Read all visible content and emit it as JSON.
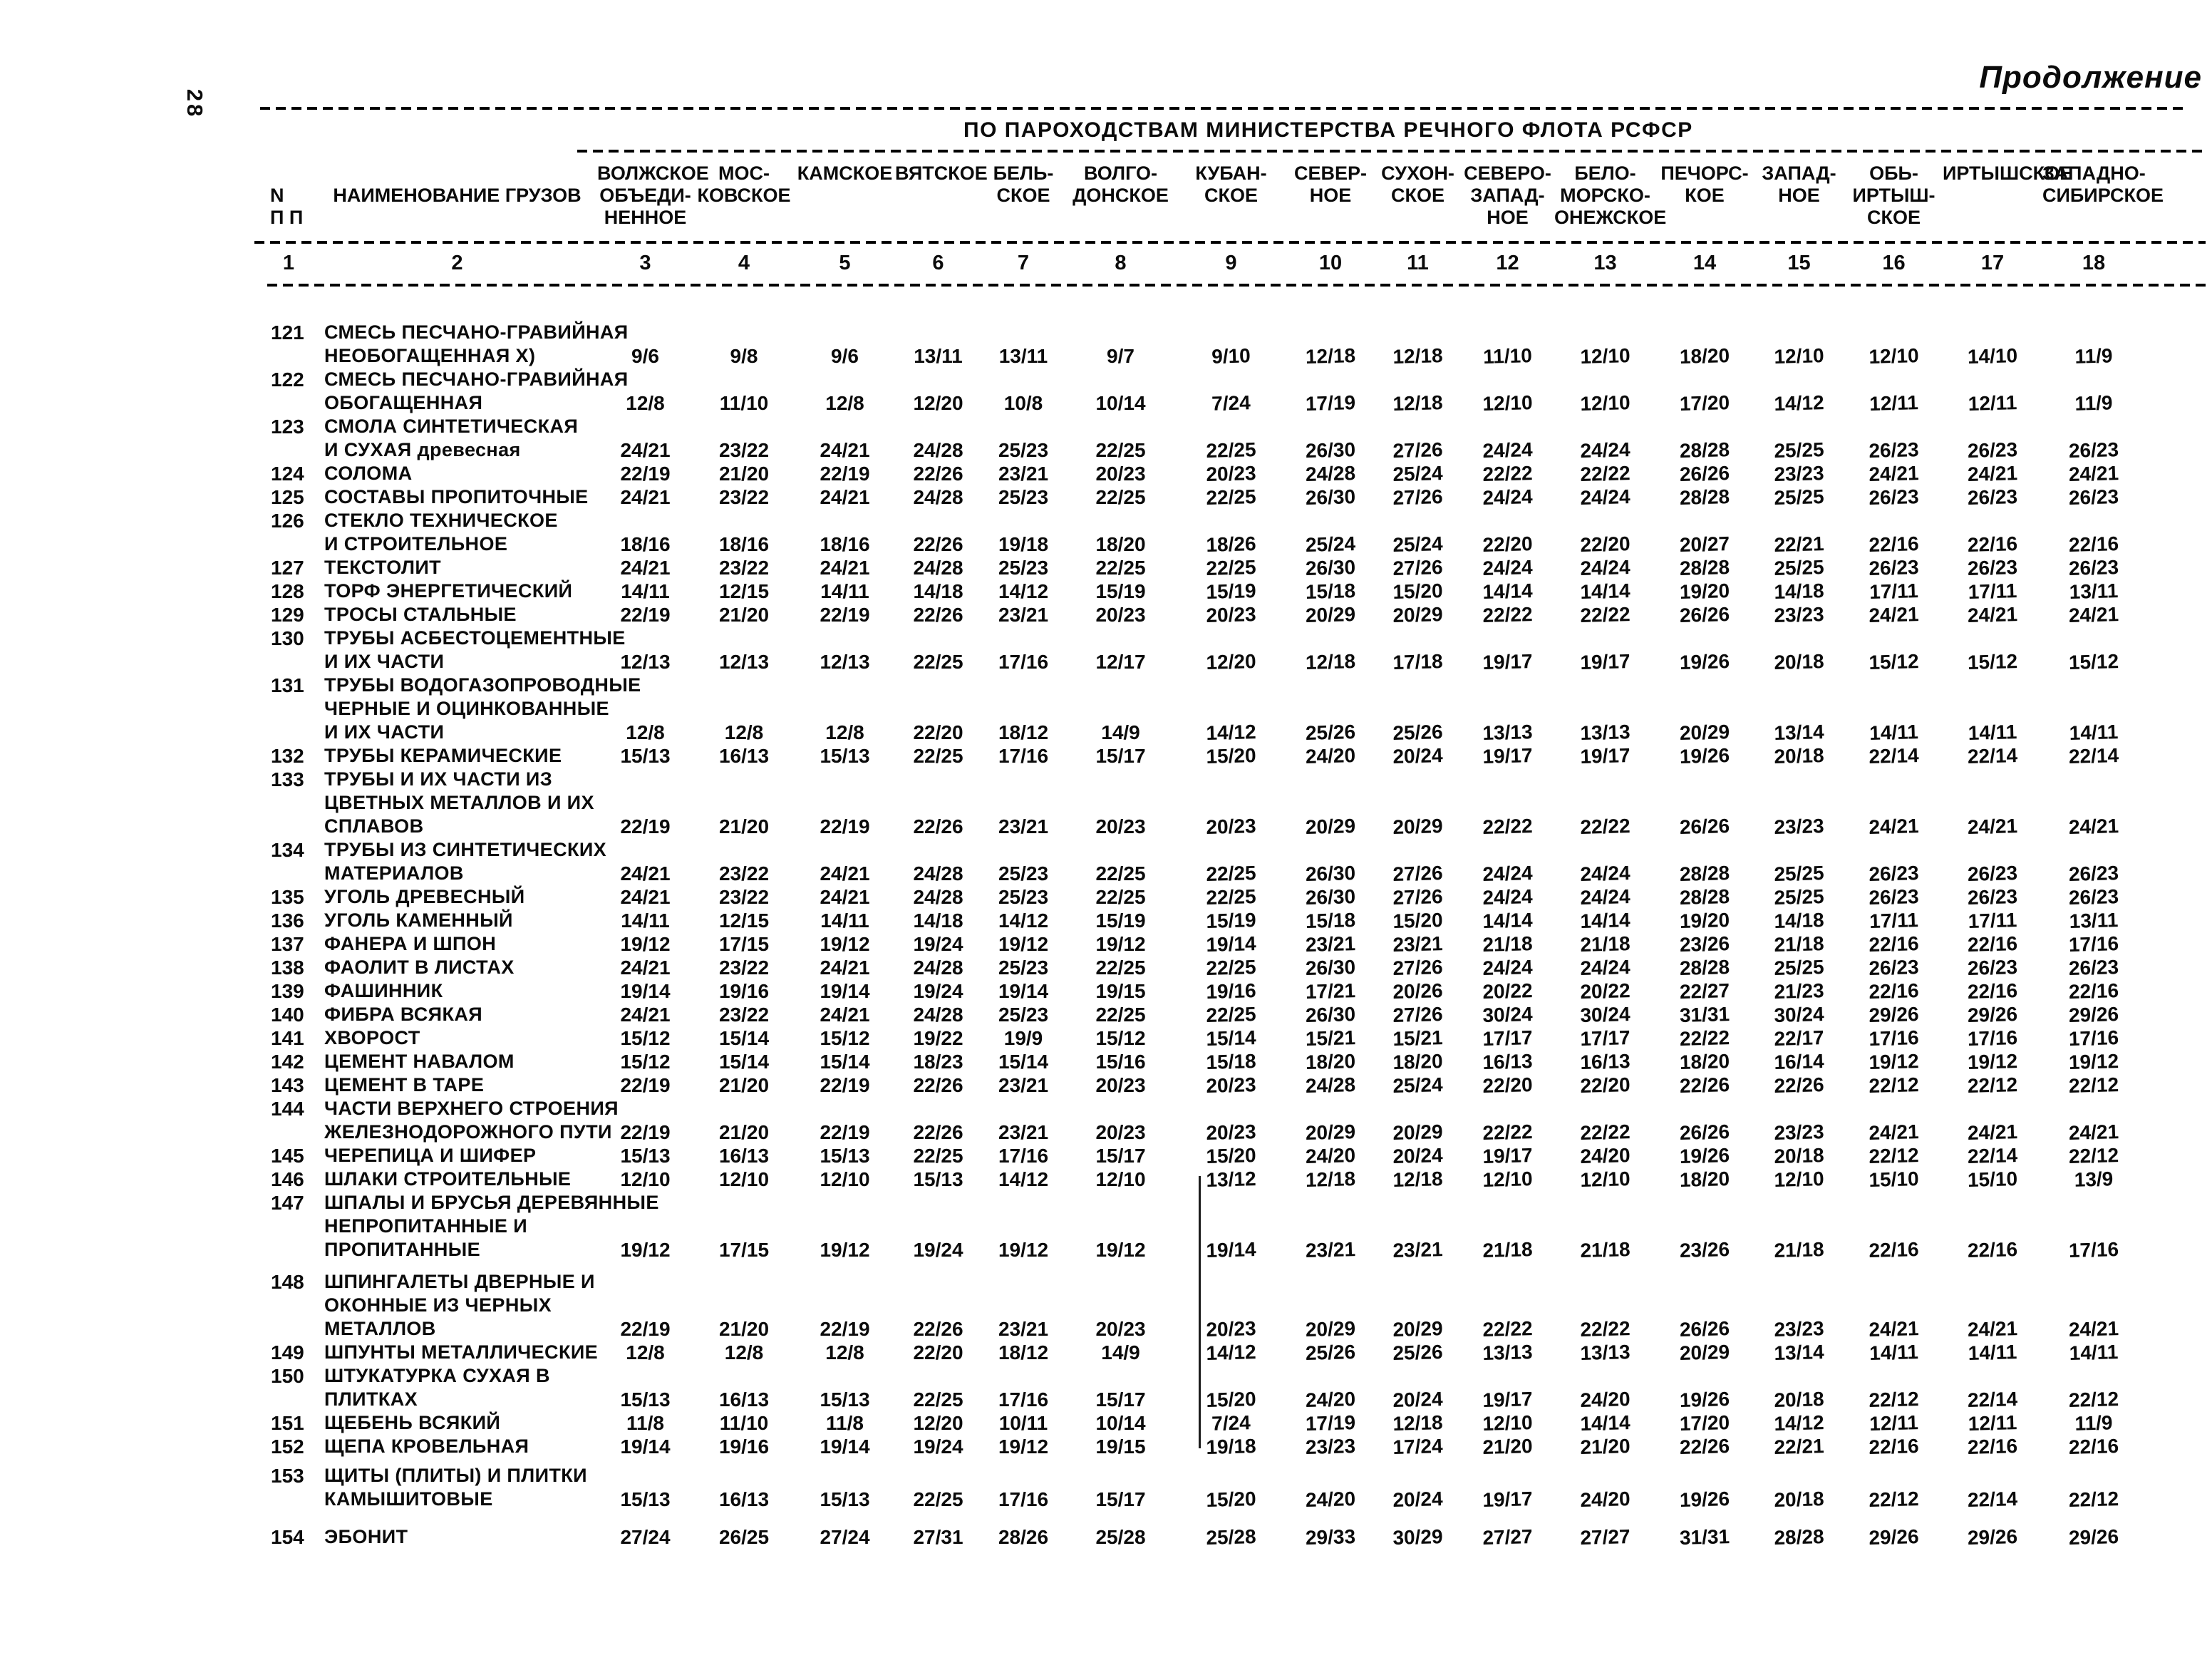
{
  "page": {
    "page_number": "28",
    "continuation_label": "Продолжение",
    "group_title": "ПО ПАРОХОДСТВАМ МИНИСТЕРСТВА РЕЧНОГО ФЛОТА РСФСР"
  },
  "table": {
    "row_header": {
      "num_label_line1": "N",
      "num_label_line2": "П П",
      "name_label": "НАИМЕНОВАНИЕ ГРУЗОВ"
    },
    "columns": [
      {
        "num": "3",
        "label_lines": [
          "ВОЛЖСКОЕ",
          "ОБЪЕДИ-",
          "НЕННОЕ"
        ]
      },
      {
        "num": "4",
        "label_lines": [
          "МОС-",
          "КОВСКОЕ"
        ]
      },
      {
        "num": "5",
        "label_lines": [
          "КАМСКОЕ"
        ]
      },
      {
        "num": "6",
        "label_lines": [
          "ВЯТСКОЕ"
        ]
      },
      {
        "num": "7",
        "label_lines": [
          "БЕЛЬ-",
          "СКОЕ"
        ]
      },
      {
        "num": "8",
        "label_lines": [
          "ВОЛГО-",
          "ДОНСКОЕ"
        ]
      },
      {
        "num": "9",
        "label_lines": [
          "КУБАН-",
          "СКОЕ"
        ]
      },
      {
        "num": "10",
        "label_lines": [
          "СЕВЕР-",
          "НОЕ"
        ]
      },
      {
        "num": "11",
        "label_lines": [
          "СУХОН-",
          "СКОЕ"
        ]
      },
      {
        "num": "12",
        "label_lines": [
          "СЕВЕРО-",
          "ЗАПАД-",
          "НОЕ"
        ]
      },
      {
        "num": "13",
        "label_lines": [
          "БЕЛО-",
          "МОРСКО-",
          "ОНЕЖСКОЕ"
        ]
      },
      {
        "num": "14",
        "label_lines": [
          "ПЕЧОРС-",
          "КОЕ"
        ]
      },
      {
        "num": "15",
        "label_lines": [
          "ЗАПАД-",
          "НОЕ"
        ]
      },
      {
        "num": "16",
        "label_lines": [
          "ОБЬ-",
          "ИРТЫШ-",
          "СКОЕ"
        ]
      },
      {
        "num": "17",
        "label_lines": [
          "ИРТЫШСКОЕ"
        ]
      },
      {
        "num": "18",
        "label_lines": [
          "ЗАПАДНО-",
          "СИБИРСКОЕ"
        ]
      }
    ],
    "column_numbers": [
      "1",
      "2",
      "3",
      "4",
      "5",
      "6",
      "7",
      "8",
      "9",
      "10",
      "11",
      "12",
      "13",
      "14",
      "15",
      "16",
      "17",
      "18"
    ],
    "rows": [
      {
        "num": "121",
        "name_lines": [
          "СМЕСЬ ПЕСЧАНО-ГРАВИЙНАЯ",
          "НЕОБОГАЩЕННАЯ Х)"
        ],
        "values": [
          "9/6",
          "9/8",
          "9/6",
          "13/11",
          "13/11",
          "9/7",
          "9/10",
          "12/18",
          "12/18",
          "11/10",
          "12/10",
          "18/20",
          "12/10",
          "12/10",
          "14/10",
          "11/9"
        ]
      },
      {
        "num": "122",
        "name_lines": [
          "СМЕСЬ ПЕСЧАНО-ГРАВИЙНАЯ",
          "ОБОГАЩЕННАЯ"
        ],
        "values": [
          "12/8",
          "11/10",
          "12/8",
          "12/20",
          "10/8",
          "10/14",
          "7/24",
          "17/19",
          "12/18",
          "12/10",
          "12/10",
          "17/20",
          "14/12",
          "12/11",
          "12/11",
          "11/9"
        ]
      },
      {
        "num": "123",
        "name_lines": [
          "СМОЛА СИНТЕТИЧЕСКАЯ",
          "И СУХАЯ древесная"
        ],
        "values": [
          "24/21",
          "23/22",
          "24/21",
          "24/28",
          "25/23",
          "22/25",
          "22/25",
          "26/30",
          "27/26",
          "24/24",
          "24/24",
          "28/28",
          "25/25",
          "26/23",
          "26/23",
          "26/23"
        ]
      },
      {
        "num": "124",
        "name_lines": [
          "СОЛОМА"
        ],
        "values": [
          "22/19",
          "21/20",
          "22/19",
          "22/26",
          "23/21",
          "20/23",
          "20/23",
          "24/28",
          "25/24",
          "22/22",
          "22/22",
          "26/26",
          "23/23",
          "24/21",
          "24/21",
          "24/21"
        ]
      },
      {
        "num": "125",
        "name_lines": [
          "СОСТАВЫ ПРОПИТОЧНЫЕ"
        ],
        "values": [
          "24/21",
          "23/22",
          "24/21",
          "24/28",
          "25/23",
          "22/25",
          "22/25",
          "26/30",
          "27/26",
          "24/24",
          "24/24",
          "28/28",
          "25/25",
          "26/23",
          "26/23",
          "26/23"
        ]
      },
      {
        "num": "126",
        "name_lines": [
          "СТЕКЛО ТЕХНИЧЕСКОЕ",
          "И СТРОИТЕЛЬНОЕ"
        ],
        "values": [
          "18/16",
          "18/16",
          "18/16",
          "22/26",
          "19/18",
          "18/20",
          "18/26",
          "25/24",
          "25/24",
          "22/20",
          "22/20",
          "20/27",
          "22/21",
          "22/16",
          "22/16",
          "22/16"
        ]
      },
      {
        "num": "127",
        "name_lines": [
          "ТЕКСТОЛИТ"
        ],
        "values": [
          "24/21",
          "23/22",
          "24/21",
          "24/28",
          "25/23",
          "22/25",
          "22/25",
          "26/30",
          "27/26",
          "24/24",
          "24/24",
          "28/28",
          "25/25",
          "26/23",
          "26/23",
          "26/23"
        ]
      },
      {
        "num": "128",
        "name_lines": [
          "ТОРФ ЭНЕРГЕТИЧЕСКИЙ"
        ],
        "values": [
          "14/11",
          "12/15",
          "14/11",
          "14/18",
          "14/12",
          "15/19",
          "15/19",
          "15/18",
          "15/20",
          "14/14",
          "14/14",
          "19/20",
          "14/18",
          "17/11",
          "17/11",
          "13/11"
        ]
      },
      {
        "num": "129",
        "name_lines": [
          "ТРОСЫ СТАЛЬНЫЕ"
        ],
        "values": [
          "22/19",
          "21/20",
          "22/19",
          "22/26",
          "23/21",
          "20/23",
          "20/23",
          "20/29",
          "20/29",
          "22/22",
          "22/22",
          "26/26",
          "23/23",
          "24/21",
          "24/21",
          "24/21"
        ]
      },
      {
        "num": "130",
        "name_lines": [
          "ТРУБЫ АСБЕСТОЦЕМЕНТНЫЕ",
          "И ИХ ЧАСТИ"
        ],
        "values": [
          "12/13",
          "12/13",
          "12/13",
          "22/25",
          "17/16",
          "12/17",
          "12/20",
          "12/18",
          "17/18",
          "19/17",
          "19/17",
          "19/26",
          "20/18",
          "15/12",
          "15/12",
          "15/12"
        ]
      },
      {
        "num": "131",
        "name_lines": [
          "ТРУБЫ ВОДОГАЗОПРОВОДНЫЕ",
          "ЧЕРНЫЕ И ОЦИНКОВАННЫЕ",
          "И ИХ ЧАСТИ"
        ],
        "values": [
          "12/8",
          "12/8",
          "12/8",
          "22/20",
          "18/12",
          "14/9",
          "14/12",
          "25/26",
          "25/26",
          "13/13",
          "13/13",
          "20/29",
          "13/14",
          "14/11",
          "14/11",
          "14/11"
        ]
      },
      {
        "num": "132",
        "name_lines": [
          "ТРУБЫ КЕРАМИЧЕСКИЕ"
        ],
        "values": [
          "15/13",
          "16/13",
          "15/13",
          "22/25",
          "17/16",
          "15/17",
          "15/20",
          "24/20",
          "20/24",
          "19/17",
          "19/17",
          "19/26",
          "20/18",
          "22/14",
          "22/14",
          "22/14"
        ]
      },
      {
        "num": "133",
        "name_lines": [
          "ТРУБЫ И ИХ ЧАСТИ ИЗ",
          "ЦВЕТНЫХ МЕТАЛЛОВ И ИХ",
          "СПЛАВОВ"
        ],
        "values": [
          "22/19",
          "21/20",
          "22/19",
          "22/26",
          "23/21",
          "20/23",
          "20/23",
          "20/29",
          "20/29",
          "22/22",
          "22/22",
          "26/26",
          "23/23",
          "24/21",
          "24/21",
          "24/21"
        ]
      },
      {
        "num": "134",
        "name_lines": [
          "ТРУБЫ ИЗ СИНТЕТИЧЕСКИХ",
          "МАТЕРИАЛОВ"
        ],
        "values": [
          "24/21",
          "23/22",
          "24/21",
          "24/28",
          "25/23",
          "22/25",
          "22/25",
          "26/30",
          "27/26",
          "24/24",
          "24/24",
          "28/28",
          "25/25",
          "26/23",
          "26/23",
          "26/23"
        ]
      },
      {
        "num": "135",
        "name_lines": [
          "УГОЛЬ ДРЕВЕСНЫЙ"
        ],
        "values": [
          "24/21",
          "23/22",
          "24/21",
          "24/28",
          "25/23",
          "22/25",
          "22/25",
          "26/30",
          "27/26",
          "24/24",
          "24/24",
          "28/28",
          "25/25",
          "26/23",
          "26/23",
          "26/23"
        ]
      },
      {
        "num": "136",
        "name_lines": [
          "УГОЛЬ КАМЕННЫЙ"
        ],
        "values": [
          "14/11",
          "12/15",
          "14/11",
          "14/18",
          "14/12",
          "15/19",
          "15/19",
          "15/18",
          "15/20",
          "14/14",
          "14/14",
          "19/20",
          "14/18",
          "17/11",
          "17/11",
          "13/11"
        ]
      },
      {
        "num": "137",
        "name_lines": [
          "ФАНЕРА И ШПОН"
        ],
        "values": [
          "19/12",
          "17/15",
          "19/12",
          "19/24",
          "19/12",
          "19/12",
          "19/14",
          "23/21",
          "23/21",
          "21/18",
          "21/18",
          "23/26",
          "21/18",
          "22/16",
          "22/16",
          "17/16"
        ]
      },
      {
        "num": "138",
        "name_lines": [
          "ФАОЛИТ В ЛИСТАХ"
        ],
        "values": [
          "24/21",
          "23/22",
          "24/21",
          "24/28",
          "25/23",
          "22/25",
          "22/25",
          "26/30",
          "27/26",
          "24/24",
          "24/24",
          "28/28",
          "25/25",
          "26/23",
          "26/23",
          "26/23"
        ]
      },
      {
        "num": "139",
        "name_lines": [
          "ФАШИННИК"
        ],
        "values": [
          "19/14",
          "19/16",
          "19/14",
          "19/24",
          "19/14",
          "19/15",
          "19/16",
          "17/21",
          "20/26",
          "20/22",
          "20/22",
          "22/27",
          "21/23",
          "22/16",
          "22/16",
          "22/16"
        ]
      },
      {
        "num": "140",
        "name_lines": [
          "ФИБРА ВСЯКАЯ"
        ],
        "values": [
          "24/21",
          "23/22",
          "24/21",
          "24/28",
          "25/23",
          "22/25",
          "22/25",
          "26/30",
          "27/26",
          "30/24",
          "30/24",
          "31/31",
          "30/24",
          "29/26",
          "29/26",
          "29/26"
        ]
      },
      {
        "num": "141",
        "name_lines": [
          "ХВОРОСТ"
        ],
        "values": [
          "15/12",
          "15/14",
          "15/12",
          "19/22",
          "19/9",
          "15/12",
          "15/14",
          "15/21",
          "15/21",
          "17/17",
          "17/17",
          "22/22",
          "22/17",
          "17/16",
          "17/16",
          "17/16"
        ]
      },
      {
        "num": "142",
        "name_lines": [
          "ЦЕМЕНТ НАВАЛОМ"
        ],
        "values": [
          "15/12",
          "15/14",
          "15/14",
          "18/23",
          "15/14",
          "15/16",
          "15/18",
          "18/20",
          "18/20",
          "16/13",
          "16/13",
          "18/20",
          "16/14",
          "19/12",
          "19/12",
          "19/12"
        ]
      },
      {
        "num": "143",
        "name_lines": [
          "ЦЕМЕНТ В ТАРЕ"
        ],
        "values": [
          "22/19",
          "21/20",
          "22/19",
          "22/26",
          "23/21",
          "20/23",
          "20/23",
          "24/28",
          "25/24",
          "22/20",
          "22/20",
          "22/26",
          "22/26",
          "22/12",
          "22/12",
          "22/12"
        ]
      },
      {
        "num": "144",
        "name_lines": [
          "ЧАСТИ ВЕРХНЕГО СТРОЕНИЯ",
          "ЖЕЛЕЗНОДОРОЖНОГО ПУТИ"
        ],
        "values": [
          "22/19",
          "21/20",
          "22/19",
          "22/26",
          "23/21",
          "20/23",
          "20/23",
          "20/29",
          "20/29",
          "22/22",
          "22/22",
          "26/26",
          "23/23",
          "24/21",
          "24/21",
          "24/21"
        ]
      },
      {
        "num": "145",
        "name_lines": [
          "ЧЕРЕПИЦА И ШИФЕР"
        ],
        "values": [
          "15/13",
          "16/13",
          "15/13",
          "22/25",
          "17/16",
          "15/17",
          "15/20",
          "24/20",
          "20/24",
          "19/17",
          "24/20",
          "19/26",
          "20/18",
          "22/12",
          "22/14",
          "22/12"
        ]
      },
      {
        "num": "146",
        "name_lines": [
          "ШЛАКИ СТРОИТЕЛЬНЫЕ"
        ],
        "values": [
          "12/10",
          "12/10",
          "12/10",
          "15/13",
          "14/12",
          "12/10",
          "13/12",
          "12/18",
          "12/18",
          "12/10",
          "12/10",
          "18/20",
          "12/10",
          "15/10",
          "15/10",
          "13/9"
        ]
      },
      {
        "num": "147",
        "name_lines": [
          "ШПАЛЫ И БРУСЬЯ ДЕРЕВЯННЫЕ",
          "НЕПРОПИТАННЫЕ И",
          "ПРОПИТАННЫЕ"
        ],
        "values": [
          "19/12",
          "17/15",
          "19/12",
          "19/24",
          "19/12",
          "19/12",
          "19/14",
          "23/21",
          "23/21",
          "21/18",
          "21/18",
          "23/26",
          "21/18",
          "22/16",
          "22/16",
          "17/16"
        ]
      },
      {
        "num": "148",
        "name_lines": [
          "ШПИНГАЛЕТЫ ДВЕРНЫЕ И",
          "ОКОННЫЕ ИЗ ЧЕРНЫХ",
          "МЕТАЛЛОВ"
        ],
        "values": [
          "22/19",
          "21/20",
          "22/19",
          "22/26",
          "23/21",
          "20/23",
          "20/23",
          "20/29",
          "20/29",
          "22/22",
          "22/22",
          "26/26",
          "23/23",
          "24/21",
          "24/21",
          "24/21"
        ]
      },
      {
        "num": "149",
        "name_lines": [
          "ШПУНТЫ МЕТАЛЛИЧЕСКИЕ"
        ],
        "values": [
          "12/8",
          "12/8",
          "12/8",
          "22/20",
          "18/12",
          "14/9",
          "14/12",
          "25/26",
          "25/26",
          "13/13",
          "13/13",
          "20/29",
          "13/14",
          "14/11",
          "14/11",
          "14/11"
        ]
      },
      {
        "num": "150",
        "name_lines": [
          "ШТУКАТУРКА СУХАЯ В",
          "ПЛИТКАХ"
        ],
        "values": [
          "15/13",
          "16/13",
          "15/13",
          "22/25",
          "17/16",
          "15/17",
          "15/20",
          "24/20",
          "20/24",
          "19/17",
          "24/20",
          "19/26",
          "20/18",
          "22/12",
          "22/14",
          "22/12"
        ]
      },
      {
        "num": "151",
        "name_lines": [
          "ЩЕБЕНЬ ВСЯКИЙ"
        ],
        "values": [
          "11/8",
          "11/10",
          "11/8",
          "12/20",
          "10/11",
          "10/14",
          "7/24",
          "17/19",
          "12/18",
          "12/10",
          "14/14",
          "17/20",
          "14/12",
          "12/11",
          "12/11",
          "11/9"
        ]
      },
      {
        "num": "152",
        "name_lines": [
          "ЩЕПА КРОВЕЛЬНАЯ"
        ],
        "values": [
          "19/14",
          "19/16",
          "19/14",
          "19/24",
          "19/12",
          "19/15",
          "19/18",
          "23/23",
          "17/24",
          "21/20",
          "21/20",
          "22/26",
          "22/21",
          "22/16",
          "22/16",
          "22/16"
        ]
      },
      {
        "num": "153",
        "name_lines": [
          "ЩИТЫ (ПЛИТЫ) И ПЛИТКИ",
          "КАМЫШИТОВЫЕ"
        ],
        "values": [
          "15/13",
          "16/13",
          "15/13",
          "22/25",
          "17/16",
          "15/17",
          "15/20",
          "24/20",
          "20/24",
          "19/17",
          "24/20",
          "19/26",
          "20/18",
          "22/12",
          "22/14",
          "22/12"
        ]
      },
      {
        "num": "154",
        "name_lines": [
          "ЭБОНИТ"
        ],
        "values": [
          "27/24",
          "26/25",
          "27/24",
          "27/31",
          "28/26",
          "25/28",
          "25/28",
          "29/33",
          "30/29",
          "27/27",
          "27/27",
          "31/31",
          "28/28",
          "29/26",
          "29/26",
          "29/26"
        ]
      }
    ]
  }
}
